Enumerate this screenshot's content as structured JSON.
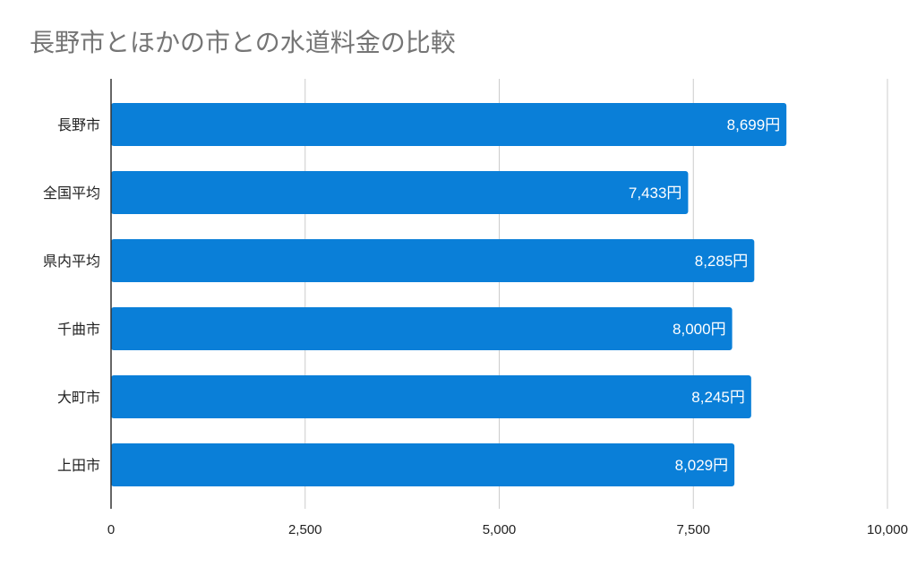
{
  "chart_data": {
    "type": "bar",
    "orientation": "horizontal",
    "title": "長野市とほかの市との水道料金の比較",
    "categories": [
      "長野市",
      "全国平均",
      "県内平均",
      "千曲市",
      "大町市",
      "上田市"
    ],
    "values": [
      8699,
      7433,
      8285,
      8000,
      8245,
      8029
    ],
    "data_labels": [
      "8,699円",
      "7,433円",
      "8,285円",
      "8,000円",
      "8,245円",
      "8,029円"
    ],
    "xlim": [
      0,
      10000
    ],
    "x_ticks": [
      0,
      2500,
      5000,
      7500,
      10000
    ],
    "x_tick_labels": [
      "0",
      "2,500",
      "5,000",
      "7,500",
      "10,000"
    ],
    "xlabel": "",
    "ylabel": "",
    "grid": true,
    "legend": "none",
    "bar_color": "#0A7FD8",
    "grid_color": "#CCCCCC"
  }
}
